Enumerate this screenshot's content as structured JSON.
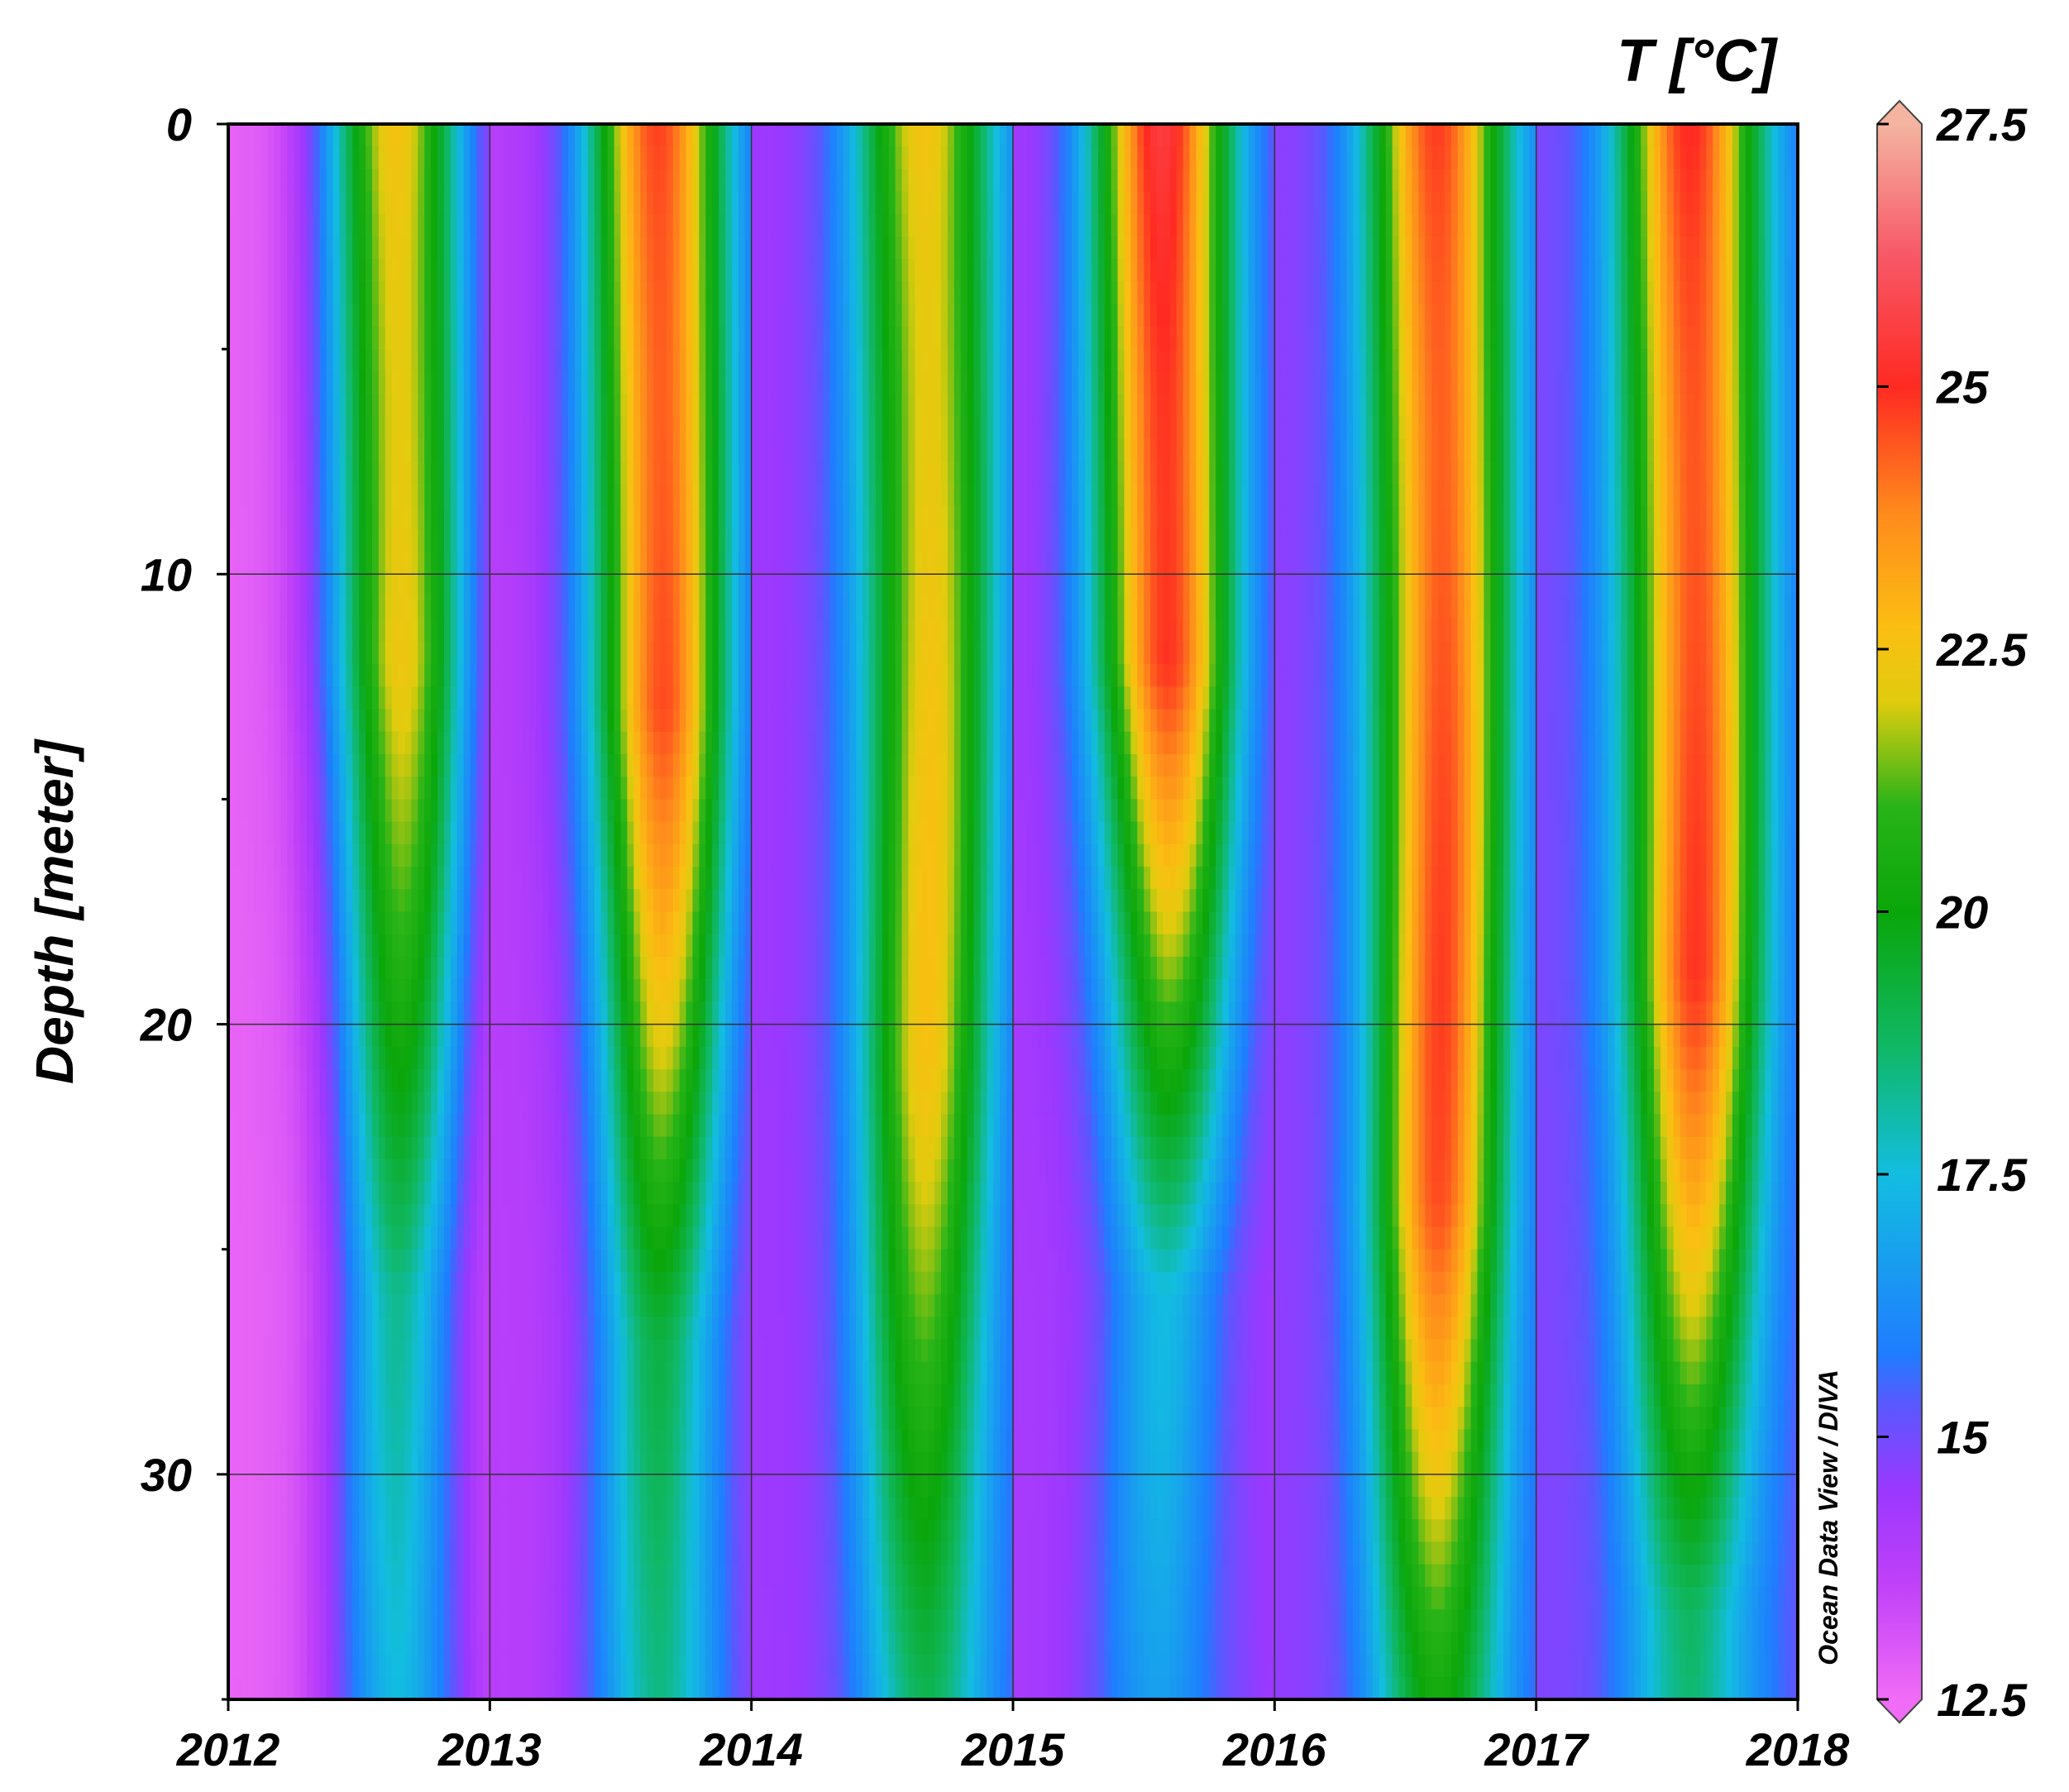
{
  "chart_data": {
    "type": "heatmap",
    "title": "",
    "xlabel": "",
    "ylabel": "Depth [meter]",
    "colorbar_label": "T [°C]",
    "credit": "Ocean Data View / DIVA",
    "xlim": [
      2012,
      2018
    ],
    "ylim": [
      35,
      0
    ],
    "x_ticks": [
      "2012",
      "2013",
      "2014",
      "2015",
      "2016",
      "2017",
      "2018"
    ],
    "y_ticks": [
      "0",
      "10",
      "20",
      "30"
    ],
    "colorbar_ticks": [
      "27.5",
      "25",
      "22.5",
      "20",
      "17.5",
      "15",
      "12.5"
    ],
    "colorbar_range": [
      12.5,
      27.5
    ],
    "colormap": [
      {
        "t": 12.5,
        "color": "#f06cf6"
      },
      {
        "t": 13.6,
        "color": "#c040f8"
      },
      {
        "t": 14.5,
        "color": "#9a38ff"
      },
      {
        "t": 15.3,
        "color": "#5a58ff"
      },
      {
        "t": 15.8,
        "color": "#1f7dff"
      },
      {
        "t": 17.5,
        "color": "#12bde0"
      },
      {
        "t": 18.7,
        "color": "#10b866"
      },
      {
        "t": 20.0,
        "color": "#0aa60a"
      },
      {
        "t": 21.0,
        "color": "#28b418"
      },
      {
        "t": 22.0,
        "color": "#e0cc0e"
      },
      {
        "t": 22.7,
        "color": "#fbbe12"
      },
      {
        "t": 23.8,
        "color": "#ff8a1c"
      },
      {
        "t": 25.0,
        "color": "#ff2a22"
      },
      {
        "t": 26.3,
        "color": "#f75a6a"
      },
      {
        "t": 27.5,
        "color": "#f4b4a0"
      }
    ],
    "seasonal_model": {
      "winter_min_c": [
        12.7,
        13.8,
        14.4,
        14.2,
        14.6,
        14.8
      ],
      "summer_peak_c": [
        23.0,
        25.2,
        23.0,
        25.8,
        25.2,
        25.4
      ],
      "peak_time_frac": [
        0.65,
        0.65,
        0.67,
        0.58,
        0.63,
        0.6
      ],
      "mixed_layer_m": [
        12,
        13,
        21,
        12,
        24,
        19
      ],
      "bottom_summer_c": [
        18.5,
        19.5,
        20.5,
        17.5,
        21.0,
        19.8
      ],
      "gridlines": true
    }
  }
}
